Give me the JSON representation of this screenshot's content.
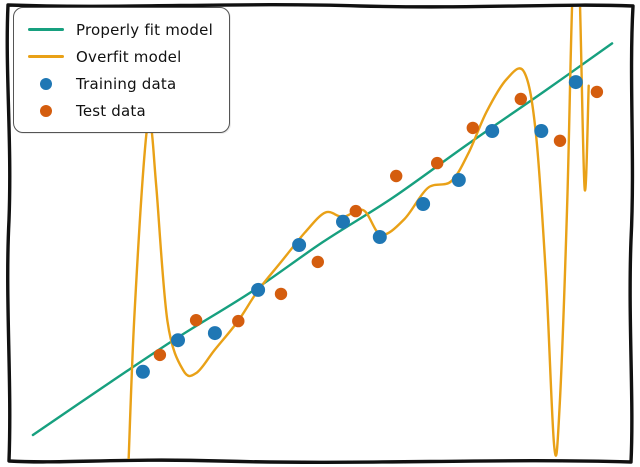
{
  "figure": {
    "background": "#ffffff",
    "frame_color": "#111111",
    "style": "hand-drawn-xkcd"
  },
  "chart_data": {
    "type": "line+scatter",
    "title": "",
    "xlabel": "",
    "ylabel": "",
    "axes_visible": false,
    "x_range": [
      0,
      1
    ],
    "y_range": [
      0,
      1
    ],
    "legend": {
      "position": "upper-left",
      "entries": [
        {
          "label": "Properly fit model",
          "marker": "line",
          "color": "#17a07f"
        },
        {
          "label": "Overfit model",
          "marker": "line",
          "color": "#e9a117"
        },
        {
          "label": "Training data",
          "marker": "dot",
          "color": "#1f77b4"
        },
        {
          "label": "Test data",
          "marker": "dot",
          "color": "#d45d0e"
        }
      ]
    },
    "series": [
      {
        "name": "Properly fit model",
        "type": "line",
        "color": "#17a07f",
        "stroke_width": 2.4,
        "points": [
          [
            0.005,
            0.045
          ],
          [
            0.12,
            0.148
          ],
          [
            0.25,
            0.262
          ],
          [
            0.38,
            0.368
          ],
          [
            0.5,
            0.478
          ],
          [
            0.62,
            0.578
          ],
          [
            0.75,
            0.7
          ],
          [
            0.88,
            0.818
          ],
          [
            0.995,
            0.925
          ]
        ]
      },
      {
        "name": "Overfit model",
        "type": "line",
        "color": "#e9a117",
        "stroke_width": 2.4,
        "points": [
          [
            0.168,
            -0.03
          ],
          [
            0.178,
            0.3
          ],
          [
            0.196,
            0.68
          ],
          [
            0.206,
            0.745
          ],
          [
            0.216,
            0.6
          ],
          [
            0.235,
            0.3
          ],
          [
            0.262,
            0.19
          ],
          [
            0.285,
            0.185
          ],
          [
            0.315,
            0.235
          ],
          [
            0.355,
            0.3
          ],
          [
            0.39,
            0.37
          ],
          [
            0.43,
            0.435
          ],
          [
            0.47,
            0.5
          ],
          [
            0.505,
            0.545
          ],
          [
            0.535,
            0.535
          ],
          [
            0.57,
            0.55
          ],
          [
            0.6,
            0.495
          ],
          [
            0.64,
            0.53
          ],
          [
            0.68,
            0.6
          ],
          [
            0.72,
            0.615
          ],
          [
            0.75,
            0.68
          ],
          [
            0.78,
            0.77
          ],
          [
            0.815,
            0.845
          ],
          [
            0.845,
            0.86
          ],
          [
            0.865,
            0.72
          ],
          [
            0.882,
            0.4
          ],
          [
            0.896,
            0.02
          ],
          [
            0.905,
            0.1
          ],
          [
            0.918,
            0.55
          ],
          [
            0.928,
            1.06
          ],
          [
            0.938,
            1.1
          ],
          [
            0.948,
            0.6
          ],
          [
            0.955,
            0.83
          ]
        ]
      },
      {
        "name": "Training data",
        "type": "scatter",
        "color": "#1f77b4",
        "marker_size": 7,
        "points": [
          [
            0.193,
            0.187
          ],
          [
            0.253,
            0.258
          ],
          [
            0.316,
            0.274
          ],
          [
            0.39,
            0.371
          ],
          [
            0.46,
            0.472
          ],
          [
            0.535,
            0.524
          ],
          [
            0.598,
            0.49
          ],
          [
            0.672,
            0.564
          ],
          [
            0.733,
            0.618
          ],
          [
            0.79,
            0.728
          ],
          [
            0.874,
            0.728
          ],
          [
            0.933,
            0.838
          ]
        ]
      },
      {
        "name": "Test data",
        "type": "scatter",
        "color": "#d45d0e",
        "marker_size": 6.2,
        "points": [
          [
            0.222,
            0.225
          ],
          [
            0.284,
            0.303
          ],
          [
            0.356,
            0.301
          ],
          [
            0.429,
            0.362
          ],
          [
            0.492,
            0.434
          ],
          [
            0.557,
            0.548
          ],
          [
            0.626,
            0.627
          ],
          [
            0.696,
            0.656
          ],
          [
            0.757,
            0.735
          ],
          [
            0.839,
            0.8
          ],
          [
            0.906,
            0.706
          ],
          [
            0.969,
            0.816
          ]
        ]
      }
    ]
  }
}
